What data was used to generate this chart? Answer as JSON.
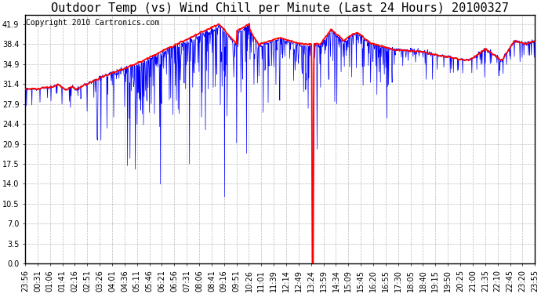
{
  "title": "Outdoor Temp (vs) Wind Chill per Minute (Last 24 Hours) 20100327",
  "copyright_text": "Copyright 2010 Cartronics.com",
  "y_ticks": [
    0.0,
    3.5,
    7.0,
    10.5,
    14.0,
    17.5,
    20.9,
    24.4,
    27.9,
    31.4,
    34.9,
    38.4,
    41.9
  ],
  "y_min": 0.0,
  "y_max": 43.5,
  "x_labels": [
    "23:56",
    "00:31",
    "01:06",
    "01:41",
    "02:16",
    "02:51",
    "03:26",
    "04:01",
    "04:36",
    "05:11",
    "05:46",
    "06:21",
    "06:56",
    "07:31",
    "08:06",
    "08:41",
    "09:16",
    "09:51",
    "10:26",
    "11:01",
    "11:39",
    "12:14",
    "12:49",
    "13:24",
    "13:59",
    "14:34",
    "15:09",
    "15:45",
    "16:20",
    "16:55",
    "17:30",
    "18:05",
    "18:40",
    "19:15",
    "19:50",
    "20:25",
    "21:00",
    "21:35",
    "22:10",
    "22:45",
    "23:20",
    "23:55"
  ],
  "red_line_color": "#FF0000",
  "blue_line_color": "#0000FF",
  "background_color": "#FFFFFF",
  "grid_color": "#AAAAAA",
  "title_fontsize": 11,
  "copyright_fontsize": 7,
  "tick_fontsize": 7
}
